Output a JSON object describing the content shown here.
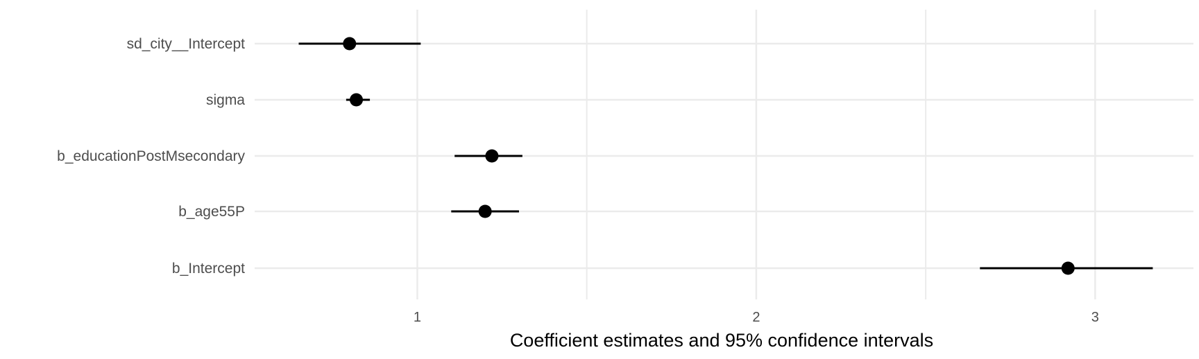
{
  "chart_data": {
    "type": "pointrange",
    "xlabel": "Coefficient estimates and 95% confidence intervals",
    "ylabel": "",
    "title": "",
    "xlim": [
      0.52,
      3.29
    ],
    "x_ticks": [
      1,
      2,
      3
    ],
    "x_minor_ticks": [
      1.5,
      2.5
    ],
    "grid": true,
    "categories": [
      "sd_city__Intercept",
      "sigma",
      "b_educationPostMsecondary",
      "b_age55P",
      "b_Intercept"
    ],
    "estimates": [
      0.8,
      0.82,
      1.22,
      1.2,
      2.92
    ],
    "lower": [
      0.65,
      0.79,
      1.11,
      1.1,
      2.66
    ],
    "upper": [
      1.01,
      0.86,
      1.31,
      1.3,
      3.17
    ],
    "point_color": "#000000",
    "grid_color": "#ebebeb"
  }
}
